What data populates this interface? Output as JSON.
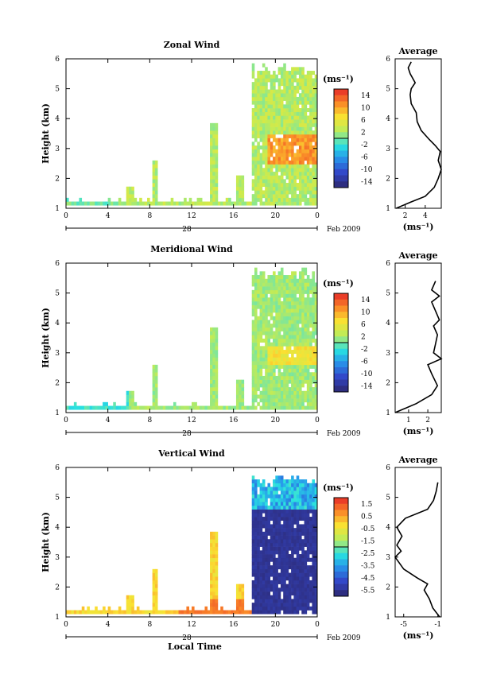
{
  "chart_data": [
    {
      "type": "heatmap",
      "title": "Zonal Wind",
      "ylabel": "Height (km)",
      "xlabel": "",
      "ylim": [
        1,
        6
      ],
      "yticks": [
        "1",
        "2",
        "3",
        "4",
        "5",
        "6"
      ],
      "xlim": [
        0,
        24
      ],
      "xticks": [
        "0",
        "4",
        "8",
        "12",
        "16",
        "20",
        "0"
      ],
      "date_day": "28",
      "date_label": "Feb 2009",
      "colorbar": {
        "unit": "(ms⁻¹)",
        "ticks": [
          "14",
          "10",
          "6",
          "2",
          "-2",
          "-6",
          "-10",
          "-14"
        ],
        "range": [
          -16,
          16
        ]
      },
      "profile": {
        "title": "Average",
        "xlabel": "(ms⁻¹)",
        "xticks": [
          "2",
          "4"
        ],
        "xlim": [
          1,
          5.6
        ],
        "ylim": [
          1,
          6
        ],
        "points": [
          [
            1.1,
            1.0
          ],
          [
            2.5,
            1.2
          ],
          [
            4.0,
            1.4
          ],
          [
            4.9,
            1.7
          ],
          [
            5.3,
            2.0
          ],
          [
            5.6,
            2.3
          ],
          [
            5.3,
            2.6
          ],
          [
            5.5,
            2.9
          ],
          [
            5.0,
            3.1
          ],
          [
            4.4,
            3.3
          ],
          [
            3.6,
            3.6
          ],
          [
            3.2,
            3.9
          ],
          [
            3.1,
            4.2
          ],
          [
            2.6,
            4.5
          ],
          [
            2.5,
            4.8
          ],
          [
            2.6,
            5.0
          ],
          [
            3.0,
            5.2
          ],
          [
            2.5,
            5.5
          ],
          [
            2.3,
            5.7
          ],
          [
            2.6,
            5.9
          ]
        ]
      }
    },
    {
      "type": "heatmap",
      "title": "Meridional Wind",
      "ylabel": "Height (km)",
      "xlabel": "",
      "ylim": [
        1,
        6
      ],
      "yticks": [
        "1",
        "2",
        "3",
        "4",
        "5",
        "6"
      ],
      "xlim": [
        0,
        24
      ],
      "xticks": [
        "0",
        "4",
        "8",
        "12",
        "16",
        "20",
        "0"
      ],
      "date_day": "28",
      "date_label": "Feb 2009",
      "colorbar": {
        "unit": "(ms⁻¹)",
        "ticks": [
          "14",
          "10",
          "6",
          "2",
          "-2",
          "-6",
          "-10",
          "-14"
        ],
        "range": [
          -16,
          16
        ]
      },
      "profile": {
        "title": "Average",
        "xlabel": "(ms⁻¹)",
        "xticks": [
          "1",
          "2"
        ],
        "xlim": [
          0.3,
          2.7
        ],
        "ylim": [
          1,
          6
        ],
        "points": [
          [
            0.3,
            1.0
          ],
          [
            1.4,
            1.3
          ],
          [
            2.2,
            1.6
          ],
          [
            2.5,
            1.9
          ],
          [
            2.2,
            2.3
          ],
          [
            2.0,
            2.6
          ],
          [
            2.7,
            2.8
          ],
          [
            2.3,
            3.0
          ],
          [
            2.4,
            3.3
          ],
          [
            2.5,
            3.6
          ],
          [
            2.3,
            3.9
          ],
          [
            2.6,
            4.1
          ],
          [
            2.4,
            4.4
          ],
          [
            2.2,
            4.7
          ],
          [
            2.6,
            4.9
          ],
          [
            2.2,
            5.1
          ],
          [
            2.4,
            5.4
          ]
        ]
      }
    },
    {
      "type": "heatmap",
      "title": "Vertical Wind",
      "ylabel": "Height (km)",
      "xlabel": "Local Time",
      "ylim": [
        1,
        6
      ],
      "yticks": [
        "1",
        "2",
        "3",
        "4",
        "5",
        "6"
      ],
      "xlim": [
        0,
        24
      ],
      "xticks": [
        "0",
        "4",
        "8",
        "12",
        "16",
        "20",
        "0"
      ],
      "date_day": "28",
      "date_label": "Feb 2009",
      "colorbar": {
        "unit": "(ms⁻¹)",
        "ticks": [
          "1.5",
          "0.5",
          "-0.5",
          "-1.5",
          "-2.5",
          "-3.5",
          "-4.5",
          "-5.5"
        ],
        "range": [
          -6,
          2
        ]
      },
      "profile": {
        "title": "Average",
        "xlabel": "(ms⁻¹)",
        "xticks": [
          "-5",
          "-1"
        ],
        "xlim": [
          -6,
          -0.6
        ],
        "ylim": [
          1,
          6
        ],
        "points": [
          [
            -0.8,
            1.0
          ],
          [
            -1.6,
            1.3
          ],
          [
            -2.0,
            1.6
          ],
          [
            -2.6,
            1.9
          ],
          [
            -2.2,
            2.1
          ],
          [
            -3.4,
            2.3
          ],
          [
            -5.0,
            2.6
          ],
          [
            -6.0,
            3.0
          ],
          [
            -5.3,
            3.2
          ],
          [
            -5.8,
            3.4
          ],
          [
            -5.2,
            3.7
          ],
          [
            -5.8,
            4.0
          ],
          [
            -4.8,
            4.3
          ],
          [
            -2.2,
            4.6
          ],
          [
            -1.5,
            4.9
          ],
          [
            -1.2,
            5.2
          ],
          [
            -1.0,
            5.5
          ]
        ]
      }
    }
  ]
}
